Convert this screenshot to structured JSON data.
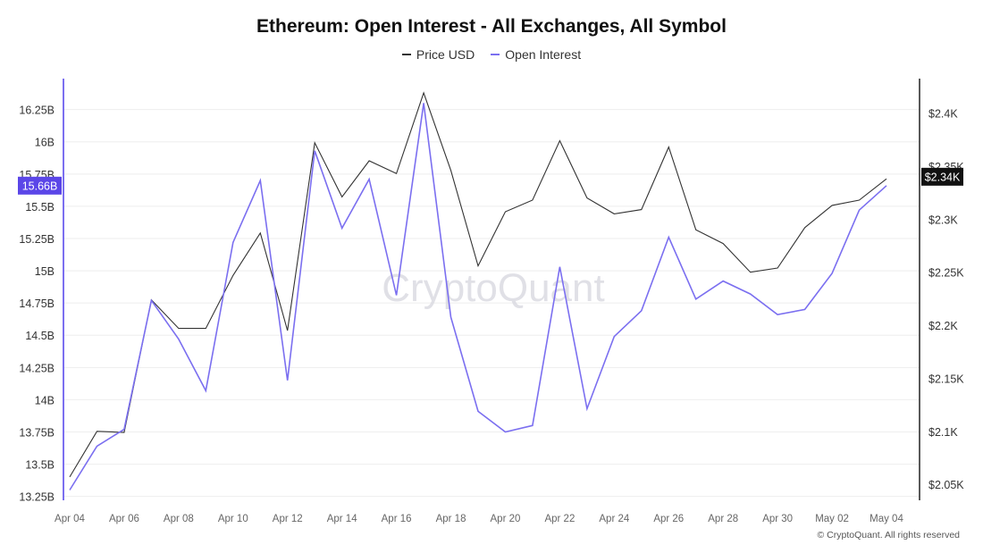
{
  "chart_data": {
    "type": "line",
    "title": "Ethereum: Open Interest - All Exchanges, All Symbol",
    "legend_position": "top-center",
    "grid": true,
    "watermark": "CryptoQuant",
    "credit": "© CryptoQuant. All rights reserved",
    "colors": {
      "price": "#333333",
      "open_interest": "#7b6ff0",
      "left_axis_line": "#7b6ff0",
      "right_axis_line": "#222222"
    },
    "x": [
      "Apr 04",
      "Apr 05",
      "Apr 06",
      "Apr 07",
      "Apr 08",
      "Apr 09",
      "Apr 10",
      "Apr 11",
      "Apr 12",
      "Apr 13",
      "Apr 14",
      "Apr 15",
      "Apr 16",
      "Apr 17",
      "Apr 18",
      "Apr 19",
      "Apr 20",
      "Apr 21",
      "Apr 22",
      "Apr 23",
      "Apr 24",
      "Apr 25",
      "Apr 26",
      "Apr 27",
      "Apr 28",
      "Apr 29",
      "Apr 30",
      "May 01",
      "May 02",
      "May 03",
      "May 04"
    ],
    "x_tick_labels": [
      "Apr 04",
      "Apr 06",
      "Apr 08",
      "Apr 10",
      "Apr 12",
      "Apr 14",
      "Apr 16",
      "Apr 18",
      "Apr 20",
      "Apr 22",
      "Apr 24",
      "Apr 26",
      "Apr 28",
      "Apr 30",
      "May 02",
      "May 04"
    ],
    "left_axis": {
      "range": [
        13.22,
        16.49
      ],
      "ticks": [
        13.25,
        13.5,
        13.75,
        14,
        14.25,
        14.5,
        14.75,
        15,
        15.25,
        15.5,
        15.75,
        16,
        16.25
      ],
      "tick_labels": [
        "13.25B",
        "13.5B",
        "13.75B",
        "14B",
        "14.25B",
        "14.5B",
        "14.75B",
        "15B",
        "15.25B",
        "15.5B",
        "15.75B",
        "16B",
        "16.25B"
      ],
      "current_value": 15.66,
      "current_label": "15.66B"
    },
    "right_axis": {
      "range": [
        2.035,
        2.4325
      ],
      "ticks": [
        2.05,
        2.1,
        2.15,
        2.2,
        2.25,
        2.3,
        2.35,
        2.4
      ],
      "tick_labels": [
        "$2.05K",
        "$2.1K",
        "$2.15K",
        "$2.2K",
        "$2.25K",
        "$2.3K",
        "$2.35K",
        "$2.4K"
      ],
      "current_value": 2.34,
      "current_label": "$2.34K"
    },
    "series": [
      {
        "name": "Price USD",
        "axis": "right",
        "values": [
          2.057,
          2.1,
          2.099,
          2.224,
          2.197,
          2.197,
          2.247,
          2.287,
          2.195,
          2.372,
          2.321,
          2.355,
          2.343,
          2.419,
          2.346,
          2.256,
          2.307,
          2.318,
          2.374,
          2.32,
          2.305,
          2.309,
          2.368,
          2.29,
          2.277,
          2.25,
          2.254,
          2.292,
          2.313,
          2.318,
          2.338
        ]
      },
      {
        "name": "Open Interest",
        "axis": "left",
        "values": [
          13.3,
          13.64,
          13.77,
          14.77,
          14.47,
          14.07,
          15.22,
          15.7,
          14.15,
          15.93,
          15.33,
          15.71,
          14.81,
          16.3,
          14.64,
          13.91,
          13.75,
          13.8,
          15.03,
          13.93,
          14.49,
          14.69,
          15.26,
          14.78,
          14.92,
          14.82,
          14.66,
          14.7,
          14.98,
          15.47,
          15.66
        ]
      }
    ]
  }
}
